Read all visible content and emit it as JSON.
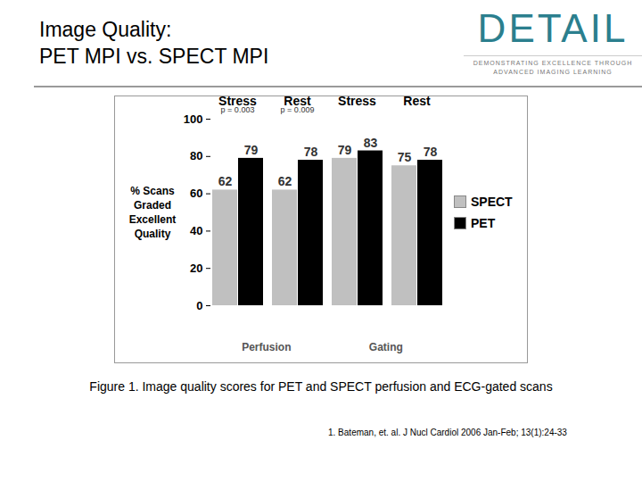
{
  "slide": {
    "title": [
      "Image Quality:",
      "PET MPI vs. SPECT MPI"
    ],
    "logo": "DETAIL",
    "tagline": [
      "DEMONSTRATING EXCELLENCE THROUGH",
      "ADVANCED IMAGING LEARNING"
    ],
    "caption": "Figure 1. Image quality scores for PET and SPECT perfusion and ECG-gated scans",
    "reference": "1. Bateman, et. al. J Nucl Cardiol 2006 Jan-Feb; 13(1):24-33"
  },
  "chart_data": {
    "type": "bar",
    "categories": [
      "Stress",
      "Rest",
      "Stress",
      "Rest"
    ],
    "category_groups": [
      "Perfusion",
      "Perfusion",
      "Gating",
      "Gating"
    ],
    "annotations": [
      "p = 0.003",
      "p = 0.009",
      null,
      null
    ],
    "ylabel": "% Scans Graded Excellent Quality",
    "series": [
      {
        "name": "SPECT",
        "color": "#c0c0c0",
        "values": [
          62,
          62,
          79,
          75
        ]
      },
      {
        "name": "PET",
        "color": "#000000",
        "values": [
          79,
          78,
          83,
          78
        ]
      }
    ],
    "ylim": [
      0,
      100
    ],
    "yticks": [
      0,
      20,
      40,
      60,
      80,
      100
    ],
    "data_labels": true,
    "legend": "right",
    "grid": false
  }
}
